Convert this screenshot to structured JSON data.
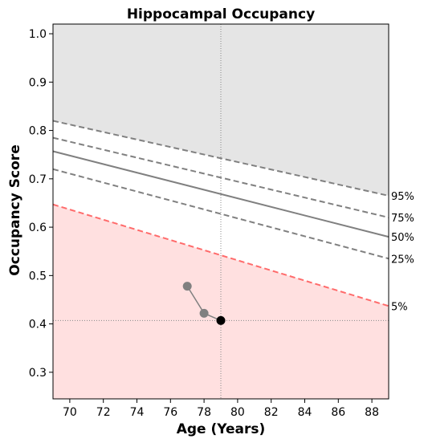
{
  "chart_data": {
    "type": "line",
    "title": "Hippocampal Occupancy",
    "xlabel": "Age (Years)",
    "ylabel": "Occupancy Score",
    "xlim": [
      69.0,
      89.0
    ],
    "ylim": [
      0.245,
      1.02
    ],
    "xticks": [
      70,
      72,
      74,
      76,
      78,
      80,
      82,
      84,
      86,
      88
    ],
    "yticks": [
      0.3,
      0.4,
      0.5,
      0.6,
      0.7,
      0.8,
      0.9,
      1.0
    ],
    "xtick_labels": [
      "70",
      "72",
      "74",
      "76",
      "78",
      "80",
      "82",
      "84",
      "86",
      "88"
    ],
    "ytick_labels": [
      "0.3",
      "0.4",
      "0.5",
      "0.6",
      "0.7",
      "0.8",
      "0.9",
      "1.0"
    ],
    "grid": false,
    "percentile_lines": [
      {
        "label": "95%",
        "x": [
          69,
          89
        ],
        "y": [
          0.82,
          0.665
        ],
        "style": "dashed",
        "color": "#808080"
      },
      {
        "label": "75%",
        "x": [
          69,
          89
        ],
        "y": [
          0.785,
          0.62
        ],
        "style": "dashed",
        "color": "#808080"
      },
      {
        "label": "50%",
        "x": [
          69,
          89
        ],
        "y": [
          0.757,
          0.58
        ],
        "style": "solid",
        "color": "#808080"
      },
      {
        "label": "25%",
        "x": [
          69,
          89
        ],
        "y": [
          0.72,
          0.535
        ],
        "style": "dashed",
        "color": "#808080"
      },
      {
        "label": "5%",
        "x": [
          69,
          89
        ],
        "y": [
          0.647,
          0.437
        ],
        "style": "dashed",
        "color": "#ff6b6b"
      }
    ],
    "upper_region_color": "#e5e5e5",
    "lower_region_color": "#ffe0e0",
    "subject_series": {
      "x": [
        77,
        78,
        79
      ],
      "y": [
        0.478,
        0.422,
        0.407
      ],
      "point_colors": [
        "#808080",
        "#808080",
        "#000000"
      ]
    },
    "reference_lines": {
      "x": 79,
      "y": 0.407
    }
  }
}
